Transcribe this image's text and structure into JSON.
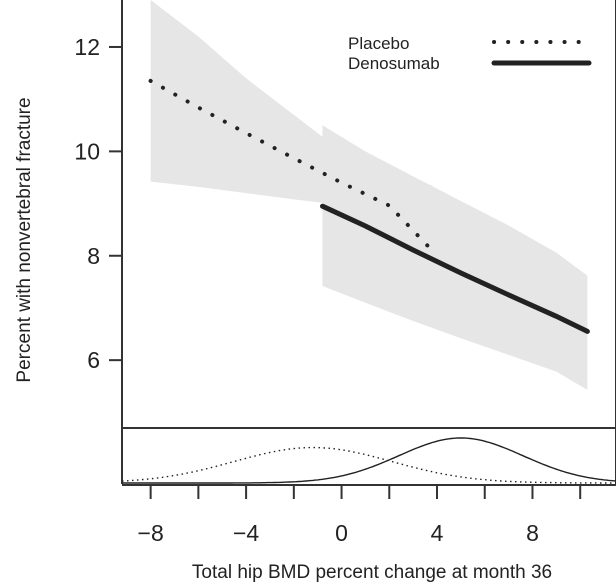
{
  "chart_data": {
    "type": "line",
    "title": "",
    "xlabel": "Total hip BMD percent change at month 36",
    "ylabel": "Percent with nonvertebral fracture",
    "xlim": [
      -9.2,
      11.5
    ],
    "ylim": [
      4.7,
      12.9
    ],
    "x_ticks": [
      -8,
      -4,
      0,
      4,
      8
    ],
    "x_minor_ticks": [
      -8,
      -6,
      -4,
      -2,
      0,
      2,
      4,
      6,
      8,
      10
    ],
    "y_ticks": [
      6,
      8,
      10,
      12
    ],
    "grid": false,
    "legend": {
      "position": "top-right",
      "entries": [
        "Placebo",
        "Denosumab"
      ]
    },
    "series": [
      {
        "name": "Placebo",
        "style": "dotted",
        "color": "#222222",
        "x": [
          -8,
          -6,
          -4,
          -2,
          0,
          2,
          3.8
        ],
        "y": [
          11.35,
          10.84,
          10.35,
          9.87,
          9.4,
          8.96,
          8.1
        ],
        "ci_x": [
          -8,
          -6,
          -4,
          -2,
          0,
          2,
          3.8
        ],
        "ci_lower": [
          9.42,
          9.32,
          9.2,
          9.08,
          8.97,
          8.84,
          8.72
        ],
        "ci_upper": [
          12.9,
          12.2,
          11.4,
          10.7,
          10.0,
          9.5,
          9.35
        ]
      },
      {
        "name": "Denosumab",
        "style": "solid",
        "color": "#222222",
        "x": [
          -0.8,
          1,
          3,
          5,
          7,
          9,
          10.3
        ],
        "y": [
          8.95,
          8.57,
          8.11,
          7.67,
          7.25,
          6.84,
          6.55
        ],
        "ci_x": [
          -0.8,
          1,
          3,
          5,
          7,
          9,
          10.3
        ],
        "ci_lower": [
          7.42,
          7.1,
          6.75,
          6.42,
          6.1,
          5.78,
          5.43
        ],
        "ci_upper": [
          10.5,
          10.0,
          9.52,
          9.05,
          8.58,
          8.06,
          7.62
        ]
      }
    ],
    "density_panel": {
      "series": [
        {
          "name": "Placebo",
          "style": "dotted",
          "mean": -1.2,
          "sd": 3.3
        },
        {
          "name": "Denosumab",
          "style": "solid",
          "mean": 5.0,
          "sd": 2.6
        }
      ]
    }
  },
  "colors": {
    "band": "#e6e6e6",
    "line": "#222222",
    "axis": "#333333"
  }
}
